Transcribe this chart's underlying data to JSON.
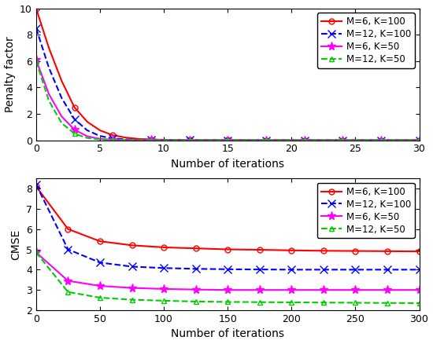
{
  "top_plot": {
    "xlabel": "Number of iterations",
    "ylabel": "Penalty factor",
    "xlim": [
      0,
      30
    ],
    "ylim": [
      0,
      10
    ],
    "yticks": [
      0,
      2,
      4,
      6,
      8,
      10
    ],
    "xticks": [
      0,
      5,
      10,
      15,
      20,
      25,
      30
    ],
    "series": [
      {
        "label": "M=6, K=100",
        "color": "#ff0000",
        "linestyle": "-",
        "marker": "o",
        "markersize": 5,
        "x": [
          0,
          1,
          2,
          3,
          4,
          5,
          6,
          7,
          8,
          9,
          10,
          11,
          12,
          13,
          14,
          15,
          16,
          17,
          18,
          19,
          20,
          21,
          22,
          23,
          24,
          25,
          26,
          27,
          28,
          29,
          30
        ],
        "y": [
          10,
          7.0,
          4.5,
          2.5,
          1.4,
          0.75,
          0.38,
          0.2,
          0.1,
          0.06,
          0.03,
          0.02,
          0.01,
          0.01,
          0.005,
          0.003,
          0.002,
          0.001,
          0.001,
          0.001,
          0.001,
          0.001,
          0.0,
          0.0,
          0.0,
          0.0,
          0.0,
          0.0,
          0.0,
          0.0,
          0.0
        ],
        "markevery": [
          0,
          3,
          6,
          9,
          12,
          15,
          18,
          21,
          24,
          27,
          30
        ]
      },
      {
        "label": "M=12, K=100",
        "color": "#0000ff",
        "linestyle": "--",
        "marker": "x",
        "markersize": 7,
        "x": [
          0,
          1,
          2,
          3,
          4,
          5,
          6,
          7,
          8,
          9,
          10,
          11,
          12,
          13,
          14,
          15,
          16,
          17,
          18,
          19,
          20,
          21,
          22,
          23,
          24,
          25,
          26,
          27,
          28,
          29,
          30
        ],
        "y": [
          8.5,
          5.5,
          3.2,
          1.6,
          0.75,
          0.32,
          0.13,
          0.06,
          0.03,
          0.015,
          0.008,
          0.004,
          0.002,
          0.001,
          0.001,
          0.0,
          0.0,
          0.0,
          0.0,
          0.0,
          0.0,
          0.0,
          0.0,
          0.0,
          0.0,
          0.0,
          0.0,
          0.0,
          0.0,
          0.0,
          0.0
        ],
        "markevery": [
          0,
          3,
          6,
          9,
          12,
          15,
          18,
          21,
          24,
          27,
          30
        ]
      },
      {
        "label": "M=6, K=50",
        "color": "#ff00ff",
        "linestyle": "-",
        "marker": "*",
        "markersize": 8,
        "x": [
          0,
          1,
          2,
          3,
          4,
          5,
          6,
          7,
          8,
          9,
          10,
          11,
          12,
          13,
          14,
          15,
          16,
          17,
          18,
          19,
          20,
          21,
          22,
          23,
          24,
          25,
          26,
          27,
          28,
          29,
          30
        ],
        "y": [
          6.1,
          3.5,
          1.8,
          0.8,
          0.3,
          0.1,
          0.04,
          0.015,
          0.007,
          0.003,
          0.002,
          0.001,
          0.001,
          0.0,
          0.0,
          0.0,
          0.0,
          0.0,
          0.0,
          0.0,
          0.0,
          0.0,
          0.0,
          0.0,
          0.0,
          0.0,
          0.0,
          0.0,
          0.0,
          0.0,
          0.0
        ],
        "markevery": [
          0,
          3,
          6,
          9,
          12,
          15,
          18,
          21,
          24,
          27,
          30
        ]
      },
      {
        "label": "M=12, K=50",
        "color": "#00cc00",
        "linestyle": "--",
        "marker": "^",
        "markersize": 5,
        "x": [
          0,
          1,
          2,
          3,
          4,
          5,
          6,
          7,
          8,
          9,
          10,
          11,
          12,
          13,
          14,
          15,
          16,
          17,
          18,
          19,
          20,
          21,
          22,
          23,
          24,
          25,
          26,
          27,
          28,
          29,
          30
        ],
        "y": [
          6.0,
          3.0,
          1.3,
          0.5,
          0.17,
          0.06,
          0.02,
          0.008,
          0.003,
          0.001,
          0.001,
          0.0,
          0.0,
          0.0,
          0.0,
          0.0,
          0.0,
          0.0,
          0.0,
          0.0,
          0.0,
          0.0,
          0.0,
          0.0,
          0.0,
          0.0,
          0.0,
          0.0,
          0.0,
          0.0,
          0.0
        ],
        "markevery": [
          0,
          3,
          6,
          9,
          12,
          15,
          18,
          21,
          24,
          27,
          30
        ]
      }
    ]
  },
  "bottom_plot": {
    "xlabel": "Number of iterations",
    "ylabel": "CMSE",
    "xlim": [
      0,
      300
    ],
    "ylim": [
      2,
      8.5
    ],
    "yticks": [
      2,
      3,
      4,
      5,
      6,
      7,
      8
    ],
    "xticks": [
      0,
      50,
      100,
      150,
      200,
      250,
      300
    ],
    "series": [
      {
        "label": "M=6, K=100",
        "color": "#ff0000",
        "linestyle": "-",
        "marker": "o",
        "markersize": 5,
        "x": [
          0,
          25,
          50,
          75,
          100,
          125,
          150,
          175,
          200,
          225,
          250,
          275,
          300
        ],
        "y": [
          8.1,
          6.0,
          5.4,
          5.2,
          5.1,
          5.05,
          5.0,
          4.98,
          4.95,
          4.93,
          4.92,
          4.91,
          4.9
        ]
      },
      {
        "label": "M=12, K=100",
        "color": "#0000ff",
        "linestyle": "--",
        "marker": "x",
        "markersize": 7,
        "x": [
          0,
          25,
          50,
          75,
          100,
          125,
          150,
          175,
          200,
          225,
          250,
          275,
          300
        ],
        "y": [
          8.2,
          5.0,
          4.35,
          4.15,
          4.08,
          4.04,
          4.02,
          4.01,
          4.0,
          4.0,
          4.0,
          4.0,
          4.0
        ]
      },
      {
        "label": "M=6, K=50",
        "color": "#ff00ff",
        "linestyle": "-",
        "marker": "*",
        "markersize": 8,
        "x": [
          0,
          25,
          50,
          75,
          100,
          125,
          150,
          175,
          200,
          225,
          250,
          275,
          300
        ],
        "y": [
          4.85,
          3.45,
          3.2,
          3.1,
          3.05,
          3.02,
          3.0,
          3.0,
          3.0,
          3.0,
          3.0,
          3.0,
          3.0
        ]
      },
      {
        "label": "M=12, K=50",
        "color": "#00cc00",
        "linestyle": "--",
        "marker": "^",
        "markersize": 5,
        "x": [
          0,
          25,
          50,
          75,
          100,
          125,
          150,
          175,
          200,
          225,
          250,
          275,
          300
        ],
        "y": [
          4.85,
          2.9,
          2.62,
          2.52,
          2.47,
          2.43,
          2.41,
          2.4,
          2.39,
          2.38,
          2.37,
          2.36,
          2.35
        ]
      }
    ]
  },
  "figure_bg": "#ffffff",
  "axes_bg": "#ffffff",
  "legend_fontsize": 8.5,
  "axis_label_fontsize": 10,
  "tick_fontsize": 9,
  "linewidth": 1.5
}
